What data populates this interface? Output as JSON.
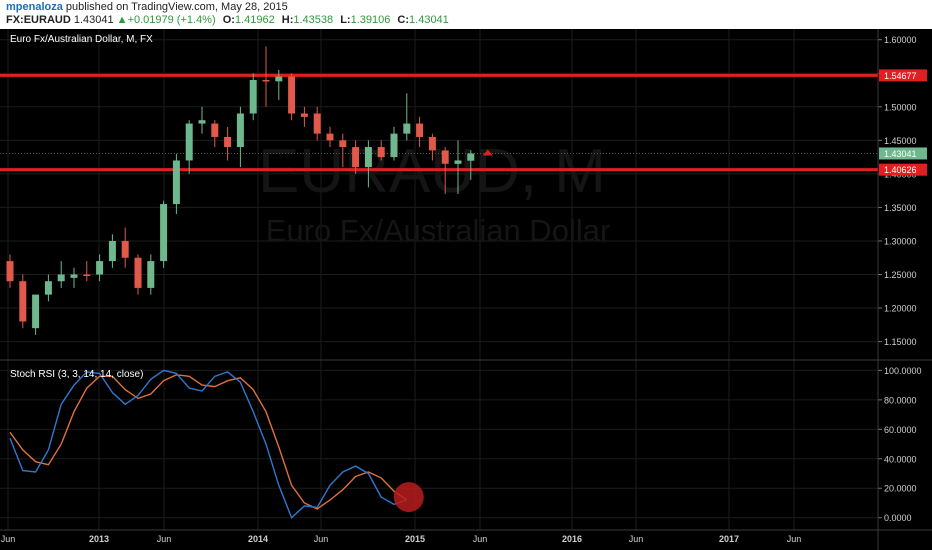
{
  "header": {
    "author": "mpenaloza",
    "published_text": "published on TradingView.com, May 28, 2015",
    "symbol": "FX:EURAUD",
    "last": "1.43041",
    "change": "+0.01979 (+1.4%)",
    "o_label": "O:",
    "o_value": "1.41962",
    "h_label": "H:",
    "h_value": "1.43538",
    "l_label": "L:",
    "l_value": "1.39106",
    "c_label": "C:",
    "c_value": "1.43041"
  },
  "chart_data": [
    {
      "type": "candlestick",
      "title": "Euro Fx/Australian Dollar, M, FX",
      "watermark_main": "EURAUD, M",
      "watermark_sub": "Euro Fx/Australian Dollar",
      "y_range": [
        1.13,
        1.61
      ],
      "y_ticks": [
        "1.60000",
        "1.55000",
        "1.50000",
        "1.45000",
        "1.40000",
        "1.35000",
        "1.30000",
        "1.25000",
        "1.20000",
        "1.15000"
      ],
      "x_ticks": [
        "Jun",
        "2013",
        "Jun",
        "2014",
        "Jun",
        "2015",
        "Jun",
        "2016",
        "Jun",
        "2017",
        "Jun"
      ],
      "horizontal_levels": [
        {
          "value": 1.54677,
          "label": "1.54677",
          "color": "#e02020"
        },
        {
          "value": 1.40626,
          "label": "1.40626",
          "color": "#e02020"
        }
      ],
      "last_price": {
        "value": 1.43041,
        "label": "1.43041",
        "color": "#6fb88e"
      },
      "grid": true,
      "colors": {
        "up": "#6fb88e",
        "down": "#e0594a",
        "background": "#000000"
      },
      "candles": [
        {
          "o": 1.27,
          "h": 1.28,
          "l": 1.23,
          "c": 1.24
        },
        {
          "o": 1.24,
          "h": 1.25,
          "l": 1.17,
          "c": 1.18
        },
        {
          "o": 1.17,
          "h": 1.22,
          "l": 1.16,
          "c": 1.22
        },
        {
          "o": 1.22,
          "h": 1.25,
          "l": 1.21,
          "c": 1.24
        },
        {
          "o": 1.24,
          "h": 1.27,
          "l": 1.23,
          "c": 1.25
        },
        {
          "o": 1.245,
          "h": 1.26,
          "l": 1.23,
          "c": 1.25
        },
        {
          "o": 1.25,
          "h": 1.27,
          "l": 1.24,
          "c": 1.248
        },
        {
          "o": 1.25,
          "h": 1.28,
          "l": 1.24,
          "c": 1.27
        },
        {
          "o": 1.27,
          "h": 1.31,
          "l": 1.26,
          "c": 1.3
        },
        {
          "o": 1.3,
          "h": 1.32,
          "l": 1.26,
          "c": 1.275
        },
        {
          "o": 1.275,
          "h": 1.28,
          "l": 1.22,
          "c": 1.23
        },
        {
          "o": 1.23,
          "h": 1.28,
          "l": 1.22,
          "c": 1.27
        },
        {
          "o": 1.27,
          "h": 1.36,
          "l": 1.26,
          "c": 1.355
        },
        {
          "o": 1.355,
          "h": 1.43,
          "l": 1.34,
          "c": 1.42
        },
        {
          "o": 1.42,
          "h": 1.48,
          "l": 1.4,
          "c": 1.475
        },
        {
          "o": 1.475,
          "h": 1.5,
          "l": 1.46,
          "c": 1.48
        },
        {
          "o": 1.475,
          "h": 1.48,
          "l": 1.44,
          "c": 1.455
        },
        {
          "o": 1.455,
          "h": 1.47,
          "l": 1.42,
          "c": 1.44
        },
        {
          "o": 1.44,
          "h": 1.5,
          "l": 1.41,
          "c": 1.49
        },
        {
          "o": 1.49,
          "h": 1.55,
          "l": 1.48,
          "c": 1.54
        },
        {
          "o": 1.54,
          "h": 1.59,
          "l": 1.5,
          "c": 1.538
        },
        {
          "o": 1.538,
          "h": 1.555,
          "l": 1.51,
          "c": 1.545
        },
        {
          "o": 1.545,
          "h": 1.55,
          "l": 1.48,
          "c": 1.49
        },
        {
          "o": 1.49,
          "h": 1.5,
          "l": 1.47,
          "c": 1.485
        },
        {
          "o": 1.49,
          "h": 1.5,
          "l": 1.45,
          "c": 1.46
        },
        {
          "o": 1.46,
          "h": 1.47,
          "l": 1.44,
          "c": 1.45
        },
        {
          "o": 1.45,
          "h": 1.46,
          "l": 1.41,
          "c": 1.44
        },
        {
          "o": 1.44,
          "h": 1.45,
          "l": 1.4,
          "c": 1.41
        },
        {
          "o": 1.41,
          "h": 1.45,
          "l": 1.38,
          "c": 1.44
        },
        {
          "o": 1.44,
          "h": 1.45,
          "l": 1.42,
          "c": 1.425
        },
        {
          "o": 1.425,
          "h": 1.47,
          "l": 1.42,
          "c": 1.46
        },
        {
          "o": 1.46,
          "h": 1.52,
          "l": 1.45,
          "c": 1.475
        },
        {
          "o": 1.475,
          "h": 1.485,
          "l": 1.44,
          "c": 1.455
        },
        {
          "o": 1.455,
          "h": 1.46,
          "l": 1.42,
          "c": 1.435
        },
        {
          "o": 1.435,
          "h": 1.44,
          "l": 1.37,
          "c": 1.415
        },
        {
          "o": 1.415,
          "h": 1.45,
          "l": 1.37,
          "c": 1.42
        },
        {
          "o": 1.41962,
          "h": 1.43538,
          "l": 1.39106,
          "c": 1.43041
        }
      ]
    },
    {
      "type": "line",
      "title": "Stoch RSI (3, 3, 14, 14, close)",
      "y_range": [
        -7,
        103
      ],
      "y_ticks": [
        "100.0000",
        "80.0000",
        "60.0000",
        "40.0000",
        "20.0000",
        "0.0000"
      ],
      "colors": {
        "k": "#2f78d0",
        "d": "#e0713a",
        "highlight": "#b81c1c"
      },
      "k_values": [
        54,
        32,
        31,
        46,
        77,
        90,
        99,
        98,
        85,
        77,
        83,
        94,
        100,
        98,
        88,
        86,
        96,
        99,
        92,
        72,
        50,
        22,
        0,
        8,
        7,
        22,
        31,
        35,
        30,
        14,
        9,
        12
      ],
      "d_values": [
        58,
        46,
        38,
        36,
        50,
        72,
        88,
        96,
        96,
        87,
        81,
        84,
        93,
        97,
        96,
        90,
        89,
        93,
        95,
        87,
        72,
        48,
        22,
        10,
        6,
        12,
        19,
        28,
        31,
        27,
        18,
        12
      ],
      "highlight_index": 31
    }
  ]
}
